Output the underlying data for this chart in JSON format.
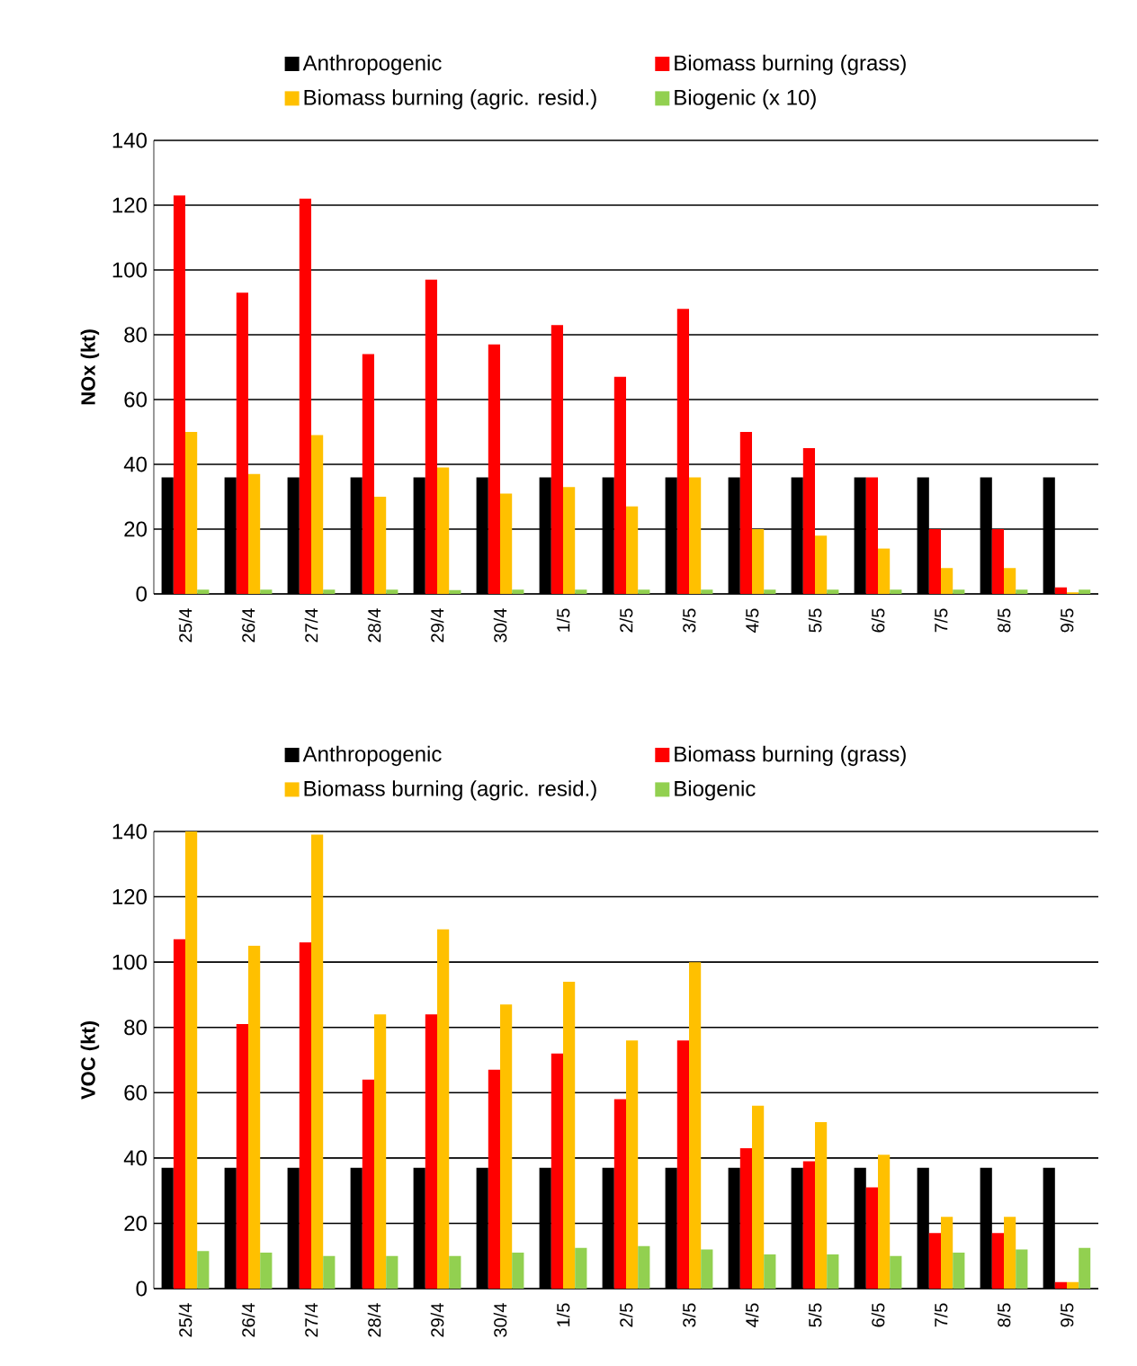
{
  "chart_data": [
    {
      "type": "bar",
      "ylabel": "NOx (kt)",
      "categories": [
        "25/4",
        "26/4",
        "27/4",
        "28/4",
        "29/4",
        "30/4",
        "1/5",
        "2/5",
        "3/5",
        "4/5",
        "5/5",
        "6/5",
        "7/5",
        "8/5",
        "9/5"
      ],
      "ylim": [
        0,
        140
      ],
      "yticks": [
        0,
        20,
        40,
        60,
        80,
        100,
        120,
        140
      ],
      "grid": "y",
      "legend": "top",
      "series": [
        {
          "name": "Anthropogenic",
          "color": "#000000",
          "values": [
            36,
            36,
            36,
            36,
            36,
            36,
            36,
            36,
            36,
            36,
            36,
            36,
            36,
            36,
            36
          ]
        },
        {
          "name": "Biomass burning (grass)",
          "color": "#ff0000",
          "values": [
            123,
            93,
            122,
            74,
            97,
            77,
            83,
            67,
            88,
            50,
            45,
            36,
            20,
            20,
            2
          ]
        },
        {
          "name": "Biomass burning (agric. resid.)",
          "color": "#ffc000",
          "values": [
            50,
            37,
            49,
            30,
            39,
            31,
            33,
            27,
            36,
            20,
            18,
            14,
            8,
            8,
            0.5
          ]
        },
        {
          "name": "Biogenic (x 10)",
          "color": "#92d050",
          "values": [
            1.3,
            1.3,
            1.3,
            1.3,
            1.2,
            1.3,
            1.3,
            1.3,
            1.3,
            1.3,
            1.3,
            1.3,
            1.3,
            1.3,
            1.3
          ]
        }
      ]
    },
    {
      "type": "bar",
      "ylabel": "VOC (kt)",
      "categories": [
        "25/4",
        "26/4",
        "27/4",
        "28/4",
        "29/4",
        "30/4",
        "1/5",
        "2/5",
        "3/5",
        "4/5",
        "5/5",
        "6/5",
        "7/5",
        "8/5",
        "9/5"
      ],
      "ylim": [
        0,
        140
      ],
      "yticks": [
        0,
        20,
        40,
        60,
        80,
        100,
        120,
        140
      ],
      "grid": "y",
      "legend": "top",
      "series": [
        {
          "name": "Anthropogenic",
          "color": "#000000",
          "values": [
            37,
            37,
            37,
            37,
            37,
            37,
            37,
            37,
            37,
            37,
            37,
            37,
            37,
            37,
            37
          ]
        },
        {
          "name": "Biomass burning (grass)",
          "color": "#ff0000",
          "values": [
            107,
            81,
            106,
            64,
            84,
            67,
            72,
            58,
            76,
            43,
            39,
            31,
            17,
            17,
            2
          ]
        },
        {
          "name": "Biomass burning (agric. resid.)",
          "color": "#ffc000",
          "values": [
            140,
            105,
            139,
            84,
            110,
            87,
            94,
            76,
            100,
            56,
            51,
            41,
            22,
            22,
            2
          ]
        },
        {
          "name": "Biogenic",
          "color": "#92d050",
          "values": [
            11.5,
            11,
            10,
            10,
            10,
            11,
            12.5,
            13,
            12,
            10.5,
            10.5,
            10,
            11,
            12,
            12.5
          ]
        }
      ]
    }
  ]
}
